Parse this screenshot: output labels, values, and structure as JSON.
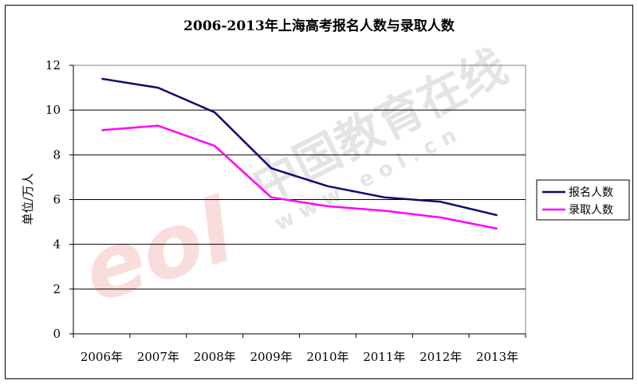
{
  "chart_data": {
    "type": "line",
    "title": "2006-2013年上海高考报名人数与录取人数",
    "xlabel": "",
    "ylabel": "单位/万人",
    "categories": [
      "2006年",
      "2007年",
      "2008年",
      "2009年",
      "2010年",
      "2011年",
      "2012年",
      "2013年"
    ],
    "ylim": [
      0,
      12
    ],
    "yticks": [
      0,
      2,
      4,
      6,
      8,
      10,
      12
    ],
    "grid": true,
    "legend_position": "right",
    "series": [
      {
        "name": "报名人数",
        "color": "#0b0b6e",
        "values": [
          11.4,
          11.0,
          9.9,
          7.4,
          6.6,
          6.1,
          5.9,
          5.3
        ]
      },
      {
        "name": "录取人数",
        "color": "#ff00ff",
        "values": [
          9.1,
          9.3,
          8.4,
          6.1,
          5.7,
          5.5,
          5.2,
          4.7
        ]
      }
    ]
  },
  "watermark": {
    "text": "中国教育在线",
    "url": "w w w . e o l . c n",
    "logo": "eol"
  }
}
